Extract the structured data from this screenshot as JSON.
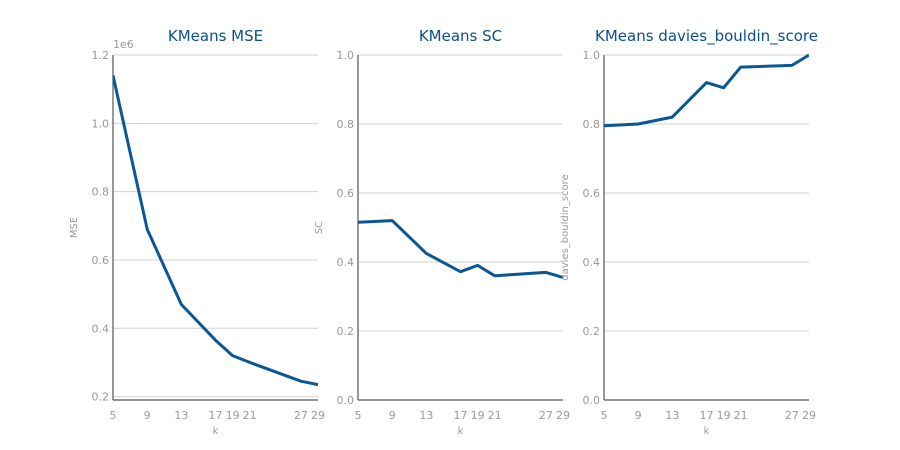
{
  "chart_data": [
    {
      "type": "line",
      "title": "KMeans MSE",
      "xlabel": "k",
      "ylabel": "MSE",
      "offset_label": "1e6",
      "x": [
        5,
        9,
        13,
        17,
        19,
        21,
        27,
        29
      ],
      "x_ticks": [
        "5",
        "9",
        "13",
        "17",
        "19",
        "21",
        "27",
        "29"
      ],
      "xlim": [
        5,
        29
      ],
      "y_ticks": [
        "0.2",
        "0.4",
        "0.6",
        "0.8",
        "1.0",
        "1.2"
      ],
      "ylim": [
        0.19,
        1.2
      ],
      "grid": "horizontal",
      "series": [
        {
          "values": [
            1.14,
            0.69,
            0.47,
            0.365,
            0.32,
            0.3,
            0.245,
            0.235
          ],
          "color": "#0b5694"
        }
      ]
    },
    {
      "type": "line",
      "title": "KMeans SC",
      "xlabel": "k",
      "ylabel": "SC",
      "x": [
        5,
        9,
        13,
        17,
        19,
        21,
        27,
        29
      ],
      "x_ticks": [
        "5",
        "9",
        "13",
        "17",
        "19",
        "21",
        "27",
        "29"
      ],
      "xlim": [
        5,
        29
      ],
      "y_ticks": [
        "0.0",
        "0.2",
        "0.4",
        "0.6",
        "0.8",
        "1.0"
      ],
      "ylim": [
        0,
        1.0
      ],
      "grid": "horizontal",
      "series": [
        {
          "values": [
            0.515,
            0.52,
            0.425,
            0.372,
            0.39,
            0.36,
            0.37,
            0.355
          ],
          "color": "#0b5694"
        }
      ]
    },
    {
      "type": "line",
      "title": "KMeans davies_bouldin_score",
      "xlabel": "k",
      "ylabel": "davies_bouldin_score",
      "x": [
        5,
        9,
        13,
        17,
        19,
        21,
        27,
        29
      ],
      "x_ticks": [
        "5",
        "9",
        "13",
        "17",
        "19",
        "21",
        "27",
        "29"
      ],
      "xlim": [
        5,
        29
      ],
      "y_ticks": [
        "0.0",
        "0.2",
        "0.4",
        "0.6",
        "0.8",
        "1.0"
      ],
      "ylim": [
        0,
        1.0
      ],
      "grid": "horizontal",
      "series": [
        {
          "values": [
            0.795,
            0.8,
            0.82,
            0.92,
            0.905,
            0.965,
            0.97,
            1.0
          ],
          "color": "#0b5694"
        }
      ]
    }
  ]
}
